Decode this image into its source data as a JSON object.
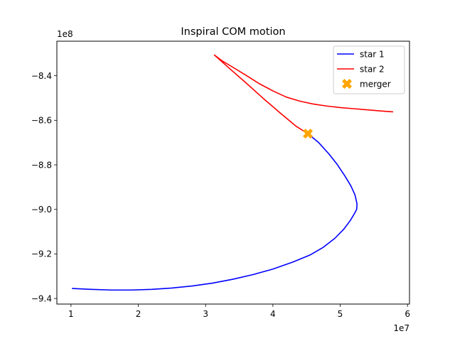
{
  "chart_data": {
    "type": "line",
    "title": "Inspiral COM motion",
    "xlabel": "",
    "ylabel": "",
    "x_offset_label": "1e7",
    "y_offset_label": "1e8",
    "xlim": [
      0.79,
      6.03
    ],
    "ylim": [
      -9.425,
      -8.245
    ],
    "xticks": [
      1,
      2,
      3,
      4,
      5,
      6
    ],
    "xtick_labels": [
      "1",
      "2",
      "3",
      "4",
      "5",
      "6"
    ],
    "yticks": [
      -9.4,
      -9.2,
      -9.0,
      -8.8,
      -8.6,
      -8.4
    ],
    "ytick_labels": [
      "−9.4",
      "−9.2",
      "−9.0",
      "−8.8",
      "−8.6",
      "−8.4"
    ],
    "grid": false,
    "legend": "top-right",
    "series": [
      {
        "name": "star 1",
        "color": "#0000ff",
        "x": [
          1.02,
          1.3,
          1.6,
          1.9,
          2.2,
          2.5,
          2.8,
          3.1,
          3.4,
          3.7,
          4.0,
          4.3,
          4.55,
          4.75,
          4.92,
          5.05,
          5.15,
          5.21,
          5.245,
          5.25,
          5.22,
          5.16,
          5.07,
          4.96,
          4.83,
          4.68,
          4.52
        ],
        "y": [
          -9.355,
          -9.359,
          -9.362,
          -9.362,
          -9.359,
          -9.353,
          -9.344,
          -9.331,
          -9.314,
          -9.293,
          -9.268,
          -9.236,
          -9.205,
          -9.17,
          -9.13,
          -9.09,
          -9.05,
          -9.02,
          -9.0,
          -8.975,
          -8.935,
          -8.895,
          -8.85,
          -8.8,
          -8.75,
          -8.7,
          -8.66
        ]
      },
      {
        "name": "star 2",
        "color": "#ff0000",
        "x": [
          5.78,
          5.6,
          5.4,
          5.2,
          5.0,
          4.8,
          4.6,
          4.4,
          4.2,
          4.0,
          3.8,
          3.6,
          3.4,
          3.25,
          3.13,
          3.35,
          3.6,
          3.85,
          4.1,
          4.35,
          4.52
        ],
        "y": [
          -8.562,
          -8.558,
          -8.553,
          -8.548,
          -8.543,
          -8.536,
          -8.527,
          -8.514,
          -8.496,
          -8.468,
          -8.436,
          -8.398,
          -8.361,
          -8.334,
          -8.307,
          -8.366,
          -8.432,
          -8.5,
          -8.565,
          -8.628,
          -8.66
        ]
      }
    ],
    "markers": [
      {
        "name": "merger",
        "color": "#ffa500",
        "x": 4.52,
        "y": -8.66,
        "symbol": "X"
      }
    ]
  }
}
